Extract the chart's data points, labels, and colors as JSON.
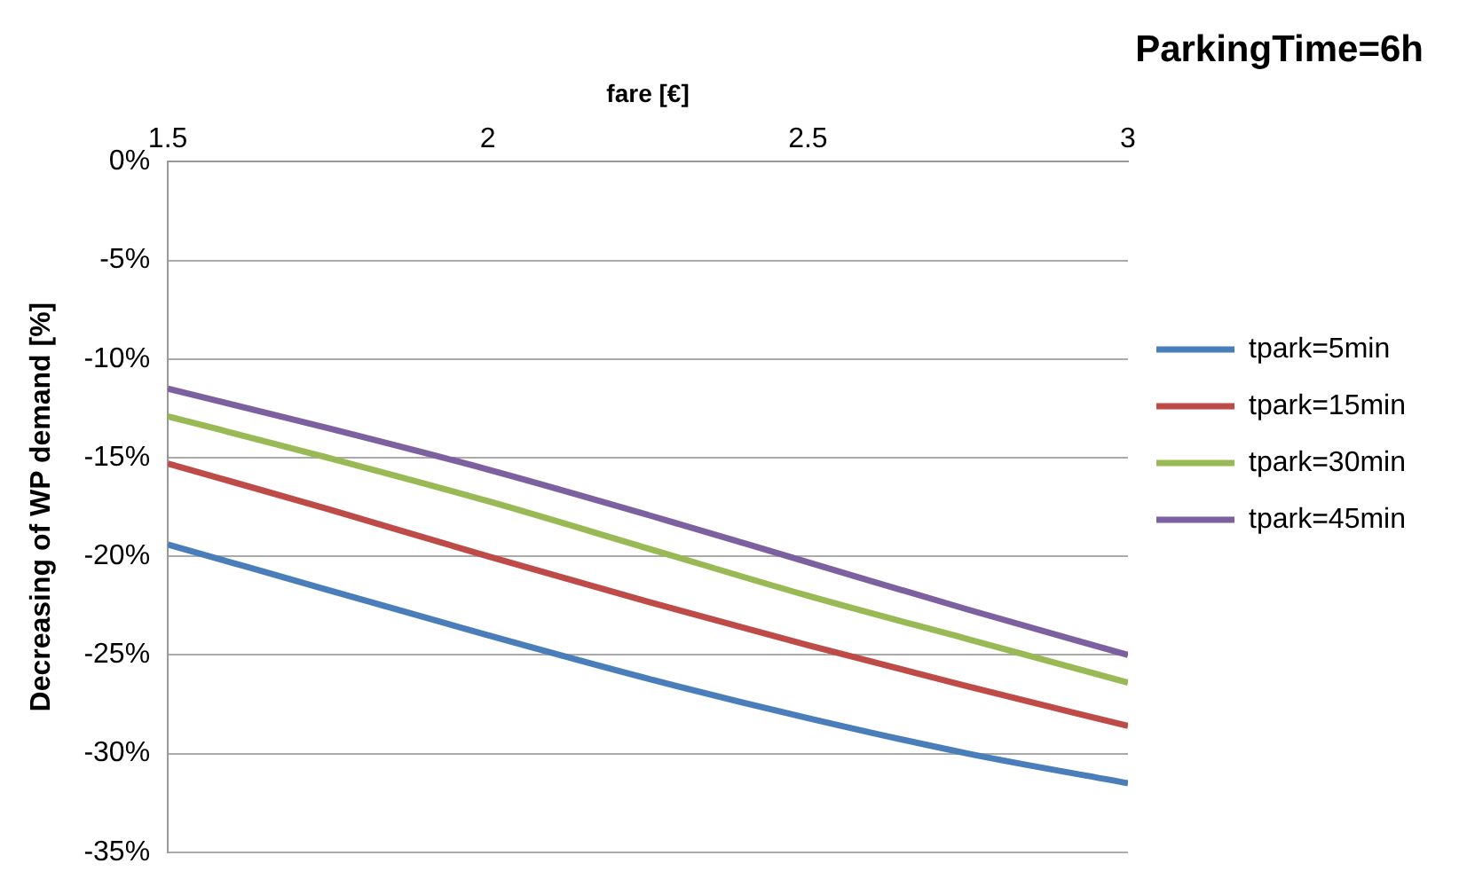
{
  "chart_data": {
    "type": "line",
    "title": "ParkingTime=6h",
    "xlabel": "fare [€]",
    "ylabel": "Decreasing of WP demand [%]",
    "x": [
      1.5,
      1.75,
      2,
      2.25,
      2.5,
      2.75,
      3
    ],
    "series": [
      {
        "name": "tpark=5min",
        "color": "#4a7ebb",
        "values": [
          -19.4,
          -21.7,
          -24.0,
          -26.2,
          -28.2,
          -30.0,
          -31.5
        ]
      },
      {
        "name": "tpark=15min",
        "color": "#be4b48",
        "values": [
          -15.3,
          -17.6,
          -20.0,
          -22.3,
          -24.5,
          -26.6,
          -28.6
        ]
      },
      {
        "name": "tpark=30min",
        "color": "#98b954",
        "values": [
          -12.9,
          -15.0,
          -17.2,
          -19.6,
          -22.0,
          -24.2,
          -26.4
        ]
      },
      {
        "name": "tpark=45min",
        "color": "#7d60a0",
        "values": [
          -11.5,
          -13.5,
          -15.6,
          -17.9,
          -20.3,
          -22.7,
          -25.0
        ]
      }
    ],
    "xlim": [
      1.5,
      3
    ],
    "xticks": [
      1.5,
      2,
      2.5,
      3
    ],
    "ylim": [
      -35,
      0
    ],
    "yticks": [
      {
        "value": 0,
        "label": "0%"
      },
      {
        "value": -5,
        "label": "-5%"
      },
      {
        "value": -10,
        "label": "-10%"
      },
      {
        "value": -15,
        "label": "-15%"
      },
      {
        "value": -20,
        "label": "-20%"
      },
      {
        "value": -25,
        "label": "-25%"
      },
      {
        "value": -30,
        "label": "-30%"
      },
      {
        "value": -35,
        "label": "-35%"
      }
    ],
    "grid": "y",
    "legend": "right",
    "marker": "none",
    "line_style": "solid"
  }
}
